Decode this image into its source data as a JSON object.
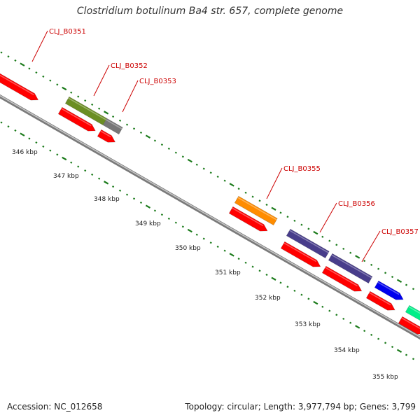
{
  "title": "Clostridium botulinum Ba4 str. 657, complete genome",
  "footer": {
    "accession": "Accession: NC_012658",
    "info": "Topology: circular; Length: 3,977,794 bp; Genes: 3,799"
  },
  "colors": {
    "cds_red": "#ff0000",
    "olive": "#6b8e23",
    "gray": "#777777",
    "orange": "#ff8c00",
    "slate_blue": "#483d8b",
    "blue": "#0000ee",
    "spring_green": "#00ee88",
    "tick_green": "#1a7a1a",
    "label_red": "#cc0000"
  },
  "scale_ticks": [
    "346 kbp",
    "347 kbp",
    "348 kbp",
    "349 kbp",
    "350 kbp",
    "351 kbp",
    "352 kbp",
    "353 kbp",
    "354 kbp",
    "355 kbp"
  ],
  "gene_labels": [
    "CLJ_B0351",
    "CLJ_B0352",
    "CLJ_B0353",
    "CLJ_B0355",
    "CLJ_B0356",
    "CLJ_B0357"
  ]
}
